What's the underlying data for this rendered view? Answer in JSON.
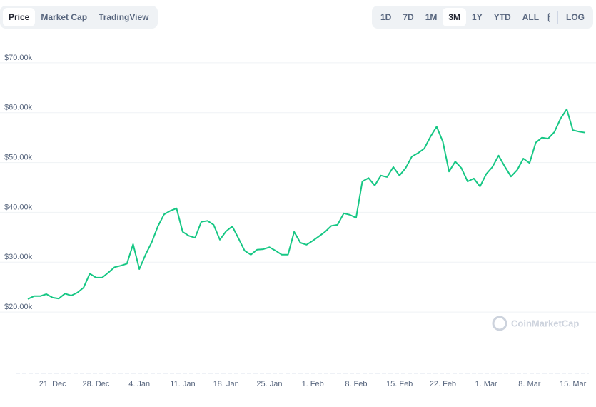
{
  "toolbar": {
    "tabs": [
      "Price",
      "Market Cap",
      "TradingView"
    ],
    "ranges": [
      "1D",
      "7D",
      "1M",
      "3M",
      "1Y",
      "YTD",
      "ALL"
    ],
    "log": "LOG"
  },
  "watermark": "CoinMarketCap",
  "chart_data": {
    "type": "line",
    "categories": [
      null,
      null,
      null,
      null,
      "21. Dec",
      null,
      null,
      null,
      null,
      null,
      null,
      "28. Dec",
      null,
      null,
      null,
      null,
      null,
      null,
      "4. Jan",
      null,
      null,
      null,
      null,
      null,
      null,
      "11. Jan",
      null,
      null,
      null,
      null,
      null,
      null,
      "18. Jan",
      null,
      null,
      null,
      null,
      null,
      null,
      "25. Jan",
      null,
      null,
      null,
      null,
      null,
      null,
      "1. Feb",
      null,
      null,
      null,
      null,
      null,
      null,
      "8. Feb",
      null,
      null,
      null,
      null,
      null,
      null,
      "15. Feb",
      null,
      null,
      null,
      null,
      null,
      null,
      "22. Feb",
      null,
      null,
      null,
      null,
      null,
      null,
      "1. Mar",
      null,
      null,
      null,
      null,
      null,
      null,
      "8. Mar",
      null,
      null,
      null,
      null,
      null,
      null,
      "15. Mar",
      null,
      null
    ],
    "series": [
      {
        "color": "#16c784",
        "values": [
          22600,
          23200,
          23200,
          23600,
          22900,
          22700,
          23700,
          23300,
          23900,
          24900,
          27700,
          26900,
          26900,
          27900,
          29000,
          29300,
          29700,
          33600,
          28600,
          31500,
          34000,
          37200,
          39600,
          40300,
          40800,
          36100,
          35300,
          34900,
          38100,
          38300,
          37500,
          34500,
          36200,
          37200,
          34800,
          32300,
          31500,
          32500,
          32600,
          33000,
          32300,
          31500,
          31500,
          36100,
          33900,
          33500,
          34300,
          35200,
          36100,
          37300,
          37500,
          39800,
          39500,
          38900,
          46200,
          46900,
          45400,
          47400,
          47100,
          49100,
          47400,
          48900,
          51200,
          51900,
          52800,
          55200,
          57200,
          54200,
          48200,
          50200,
          48900,
          46200,
          46800,
          45200,
          47700,
          49100,
          51400,
          49200,
          47200,
          48500,
          50800,
          49900,
          54000,
          55000,
          54800,
          56100,
          58800,
          60700,
          56500,
          56200,
          56000
        ]
      }
    ],
    "ylim": [
      7700,
      74000
    ],
    "yticks": [
      {
        "value": 20000,
        "label": "$20.00k"
      },
      {
        "value": 30000,
        "label": "$30.00k"
      },
      {
        "value": 40000,
        "label": "$40.00k"
      },
      {
        "value": 50000,
        "label": "$50.00k"
      },
      {
        "value": 60000,
        "label": "$60.00k"
      },
      {
        "value": 70000,
        "label": "$70.00k"
      }
    ],
    "grid": true
  }
}
